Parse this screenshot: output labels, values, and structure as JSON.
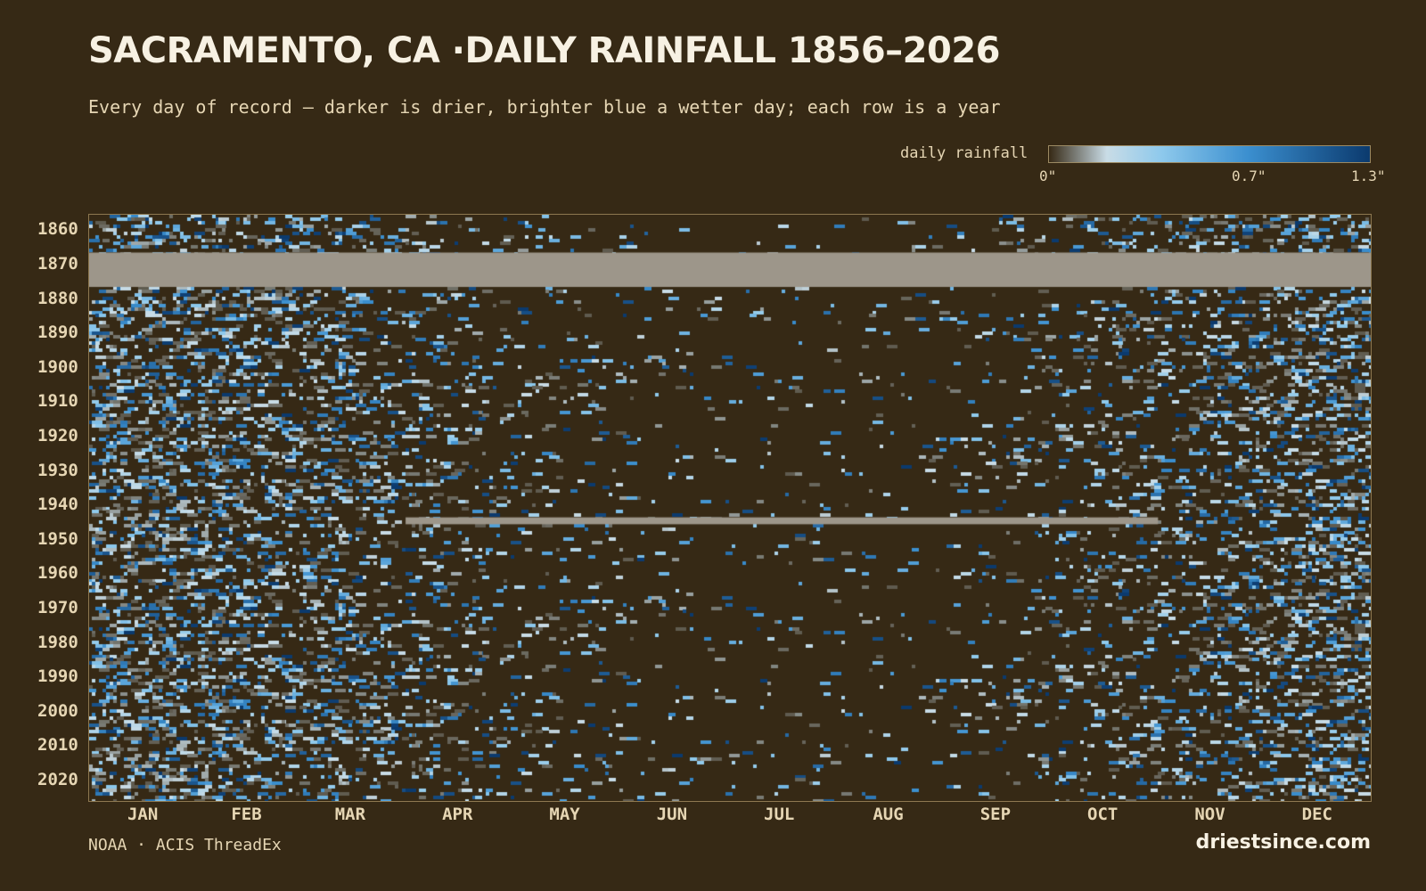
{
  "title": "SACRAMENTO, CA ·DAILY RAINFALL 1856–2026",
  "subtitle": "Every day of record — darker is drier, brighter blue a wetter day; each row is a year",
  "source": "NOAA · ACIS ThreadEx",
  "brand": "driestsince.com",
  "colors": {
    "background": "#362915",
    "missing": "#9d968a",
    "scale": [
      "#362915",
      "#c9dce6",
      "#8ec9ec",
      "#3b8fcf",
      "#0b3a6e"
    ]
  },
  "chart_data": {
    "type": "heatmap",
    "title": "SACRAMENTO, CA ·DAILY RAINFALL 1856–2026",
    "x_unit": "day of year",
    "y_unit": "year",
    "x_tick_labels": [
      "JAN",
      "FEB",
      "MAR",
      "APR",
      "MAY",
      "JUN",
      "JUL",
      "AUG",
      "SEP",
      "OCT",
      "NOV",
      "DEC"
    ],
    "y_tick_labels": [
      "1860",
      "1870",
      "1880",
      "1890",
      "1900",
      "1910",
      "1920",
      "1930",
      "1940",
      "1950",
      "1960",
      "1970",
      "1980",
      "1990",
      "2000",
      "2010",
      "2020"
    ],
    "year_range": [
      1856,
      2026
    ],
    "value_label": "daily rainfall",
    "value_range": [
      0,
      1.3
    ],
    "value_unit": "in",
    "legend_ticks": [
      "0\"",
      "0.7\"",
      "1.3\""
    ],
    "grid": false,
    "missing_data_periods": [
      {
        "years": [
          1867,
          1876
        ],
        "months": "JAN–DEC"
      },
      {
        "years": [
          1944,
          1945
        ],
        "months": "APR–OCT"
      }
    ],
    "seasonality": "Wet November–April, nearly dry June–September"
  }
}
